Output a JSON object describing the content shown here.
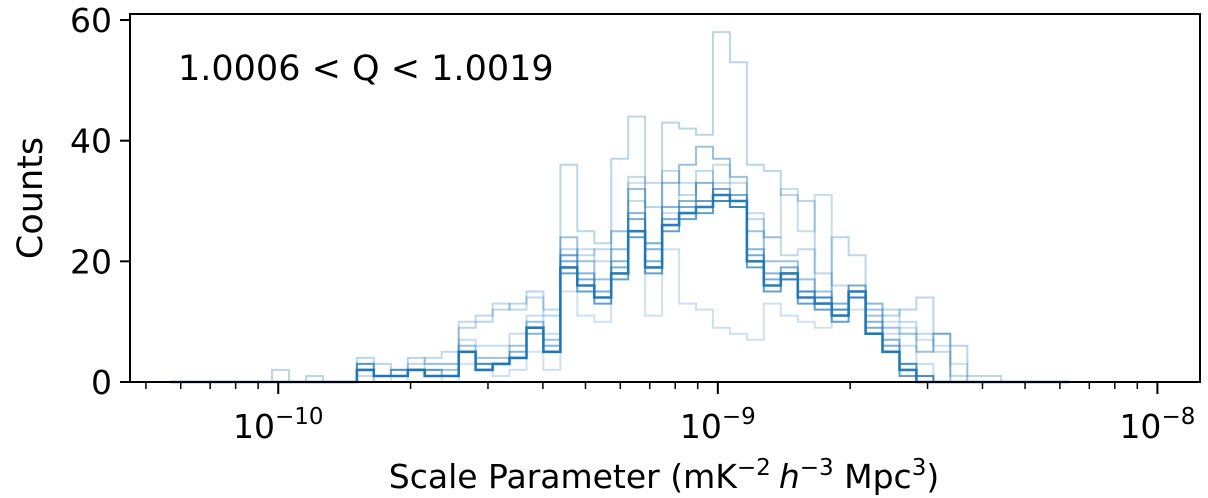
{
  "chart_data": {
    "type": "histogram-step",
    "annotation": "1.0006 < Q < 1.0019",
    "xlabel": {
      "prefix": "Scale Parameter (mK",
      "sup1": "−2",
      "h": "h",
      "sup2": "−3",
      "mpc": " Mpc",
      "sup3": "3",
      "suffix": ")"
    },
    "ylabel": "Counts",
    "x_scale": "log",
    "xlim": [
      4.6e-11,
      1.25e-08
    ],
    "ylim": [
      0,
      61
    ],
    "y_ticks": [
      0,
      20,
      40,
      60
    ],
    "x_major_ticks": [
      {
        "value": 1e-10,
        "base": "10",
        "exp": "−10"
      },
      {
        "value": 1e-09,
        "base": "10",
        "exp": "−9"
      },
      {
        "value": 1e-08,
        "base": "10",
        "exp": "−8"
      }
    ],
    "color": "#1f77b4",
    "bin_edges": [
      5.68e-11,
      6.21e-11,
      6.79e-11,
      7.42e-11,
      8.11e-11,
      8.86e-11,
      9.68e-11,
      1.058e-10,
      1.157e-10,
      1.264e-10,
      1.382e-10,
      1.51e-10,
      1.65e-10,
      1.804e-10,
      1.971e-10,
      2.154e-10,
      2.354e-10,
      2.573e-10,
      2.812e-10,
      3.073e-10,
      3.358e-10,
      3.67e-10,
      4.011e-10,
      4.384e-10,
      4.791e-10,
      5.236e-10,
      5.722e-10,
      6.254e-10,
      6.834e-10,
      7.469e-10,
      8.163e-10,
      8.921e-10,
      9.75e-10,
      1.0655e-09,
      1.1645e-09,
      1.2726e-09,
      1.3908e-09,
      1.52e-09,
      1.6612e-09,
      1.8154e-09,
      1.984e-09,
      2.1683e-09,
      2.3697e-09,
      2.5898e-09,
      2.8303e-09,
      3.0932e-09,
      3.3804e-09,
      3.6944e-09,
      4.0375e-09,
      4.4125e-09,
      4.8223e-09,
      5.2701e-09,
      5.7596e-09,
      6.2945e-09
    ],
    "series": [
      {
        "opacity": 0.95,
        "width": 2.6,
        "counts": [
          0,
          0,
          0,
          0,
          0,
          0,
          0,
          0,
          0,
          0,
          0,
          2,
          1,
          1,
          2,
          1,
          1,
          5,
          2,
          3,
          4,
          9,
          5,
          19,
          16,
          14,
          18,
          25,
          19,
          26,
          28,
          29,
          31,
          30,
          20,
          16,
          18,
          14,
          13,
          11,
          15,
          8,
          5,
          2,
          0,
          0,
          0,
          0,
          0,
          0,
          0,
          0,
          0
        ]
      },
      {
        "opacity": 0.7,
        "width": 2,
        "counts": [
          0,
          0,
          0,
          0,
          0,
          0,
          0,
          0,
          0,
          0,
          0,
          2,
          1,
          1,
          2,
          1,
          1,
          5,
          2,
          3,
          4,
          9,
          5,
          18,
          15,
          13,
          17,
          24,
          18,
          25,
          27,
          28,
          30,
          29,
          19,
          15,
          17,
          13,
          12,
          10,
          14,
          8,
          5,
          1,
          0,
          0,
          0,
          0,
          0,
          0,
          0,
          0,
          0
        ]
      },
      {
        "opacity": 0.6,
        "width": 2,
        "counts": [
          0,
          0,
          0,
          0,
          0,
          0,
          0,
          0,
          0,
          0,
          0,
          2,
          1,
          1,
          2,
          1,
          1,
          5,
          3,
          3,
          4,
          9,
          5,
          20,
          17,
          15,
          19,
          27,
          20,
          27,
          29,
          30,
          32,
          31,
          21,
          17,
          19,
          15,
          14,
          12,
          16,
          9,
          6,
          3,
          1,
          0,
          0,
          0,
          0,
          0,
          0,
          0,
          0
        ]
      },
      {
        "opacity": 0.55,
        "width": 2,
        "counts": [
          0,
          0,
          0,
          0,
          0,
          0,
          0,
          0,
          0,
          0,
          0,
          3,
          1,
          1,
          2,
          2,
          1,
          5,
          3,
          3,
          5,
          8,
          6,
          21,
          18,
          14,
          20,
          28,
          22,
          29,
          30,
          33,
          30,
          29,
          22,
          18,
          17,
          15,
          14,
          12,
          14,
          10,
          7,
          3,
          1,
          0,
          0,
          0,
          0,
          0,
          0,
          0,
          0
        ]
      },
      {
        "opacity": 0.45,
        "width": 2,
        "counts": [
          0,
          0,
          0,
          0,
          0,
          0,
          0,
          0,
          0,
          0,
          0,
          3,
          1,
          2,
          2,
          2,
          2,
          6,
          4,
          4,
          6,
          10,
          7,
          24,
          20,
          17,
          22,
          32,
          23,
          33,
          36,
          39,
          37,
          34,
          25,
          20,
          20,
          17,
          15,
          13,
          15,
          12,
          9,
          8,
          5,
          8,
          0,
          0,
          0,
          0,
          0,
          0,
          0
        ]
      },
      {
        "opacity": 0.3,
        "width": 2,
        "counts": [
          0,
          0,
          0,
          0,
          0,
          0,
          2,
          0,
          1,
          0,
          0,
          4,
          3,
          2,
          4,
          3,
          3,
          9,
          10,
          12,
          13,
          15,
          11,
          36,
          25,
          23,
          37,
          44,
          29,
          43,
          42,
          41,
          58,
          53,
          36,
          35,
          31,
          30,
          14,
          24,
          21,
          13,
          11,
          12,
          14,
          8,
          6,
          1,
          1,
          0,
          0,
          0,
          0
        ]
      },
      {
        "opacity": 0.28,
        "width": 2,
        "counts": [
          0,
          0,
          0,
          0,
          0,
          0,
          0,
          0,
          0,
          0,
          0,
          0,
          1,
          2,
          3,
          4,
          5,
          10,
          11,
          13,
          12,
          14,
          12,
          22,
          21,
          22,
          25,
          34,
          33,
          35,
          31,
          35,
          33,
          30,
          27,
          24,
          21,
          22,
          18,
          16,
          14,
          13,
          12,
          10,
          8,
          5,
          1,
          0,
          0,
          0,
          0,
          0,
          0
        ]
      },
      {
        "opacity": 0.25,
        "width": 2,
        "counts": [
          0,
          0,
          0,
          0,
          0,
          0,
          0,
          0,
          0,
          0,
          0,
          1,
          1,
          2,
          2,
          3,
          3,
          7,
          6,
          6,
          8,
          11,
          8,
          21,
          22,
          20,
          25,
          30,
          23,
          28,
          33,
          30,
          36,
          33,
          28,
          24,
          32,
          25,
          31,
          13,
          14,
          11,
          8,
          6,
          3,
          0,
          0,
          0,
          0,
          0,
          0,
          0,
          0
        ]
      },
      {
        "opacity": 0.22,
        "width": 2,
        "counts": [
          0,
          0,
          0,
          0,
          0,
          0,
          0,
          0,
          0,
          0,
          0,
          0,
          1,
          0,
          2,
          1,
          0,
          3,
          2,
          1,
          2,
          5,
          2,
          15,
          11,
          10,
          18,
          33,
          11,
          22,
          13,
          12,
          9,
          8,
          7,
          13,
          11,
          10,
          9,
          11,
          12,
          11,
          10,
          9,
          7,
          6,
          3,
          0,
          0,
          0,
          0,
          0,
          0
        ]
      }
    ]
  }
}
